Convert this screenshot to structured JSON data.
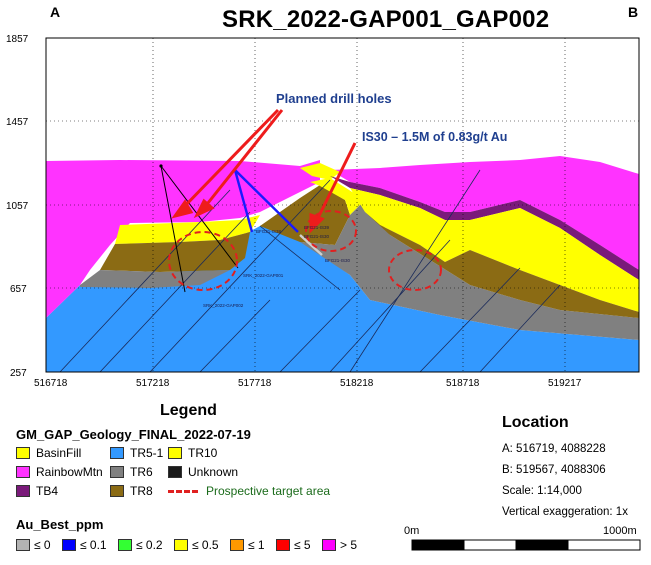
{
  "title": "SRK_2022-GAP001_GAP002",
  "corner_labels": {
    "left": "A",
    "right": "B"
  },
  "y_axis_ticks": [
    "1857",
    "1457",
    "1057",
    "657",
    "257"
  ],
  "x_axis_ticks": [
    "516718",
    "517218",
    "517718",
    "518218",
    "518718",
    "519217"
  ],
  "annotations": {
    "planned": "Planned drill holes",
    "is30": "IS30 – 1.5M of 0.83g/t Au"
  },
  "hole_labels": {
    "gap001": "SRK_2022-GAP001",
    "gap002": "SRK_2022-GAP002",
    "is38": "BFG21-IS38",
    "is39": "BFG21-IS39",
    "is30a": "BFG21-IS30",
    "is30b": "BFG21-IS30"
  },
  "legend": {
    "heading": "Legend",
    "geology_title": "GM_GAP_Geology_FINAL_2022-07-19",
    "units": [
      {
        "label": "BasinFill",
        "color": "#ffff00"
      },
      {
        "label": "RainbowMtn",
        "color": "#ff33ff"
      },
      {
        "label": "TB4",
        "color": "#7a1a7a"
      },
      {
        "label": "TR5-1",
        "color": "#3399ff"
      },
      {
        "label": "TR6",
        "color": "#808080"
      },
      {
        "label": "TR8",
        "color": "#8b6b14"
      },
      {
        "label": "TR10",
        "color": "#ffff00"
      },
      {
        "label": "Unknown",
        "color": "#1a1a1a"
      }
    ],
    "prospect_label": "Prospective target area",
    "au_title": "Au_Best_ppm",
    "au_bins": [
      {
        "label": "≤ 0",
        "color": "#b3b3b3"
      },
      {
        "label": "≤ 0.1",
        "color": "#0000ff"
      },
      {
        "label": "≤ 0.2",
        "color": "#33ff33"
      },
      {
        "label": "≤ 0.5",
        "color": "#ffff00"
      },
      {
        "label": "≤ 1",
        "color": "#ff9900"
      },
      {
        "label": "≤ 5",
        "color": "#ff0000"
      },
      {
        "label": "> 5",
        "color": "#ff00ff"
      }
    ]
  },
  "location": {
    "heading": "Location",
    "a": "A:   516719, 4088228",
    "b": "B:   519567, 4088306",
    "scale": "Scale: 1:14,000",
    "vexag": "Vertical exaggeration: 1x"
  },
  "scale_bar": {
    "start": "0m",
    "end": "1000m"
  }
}
